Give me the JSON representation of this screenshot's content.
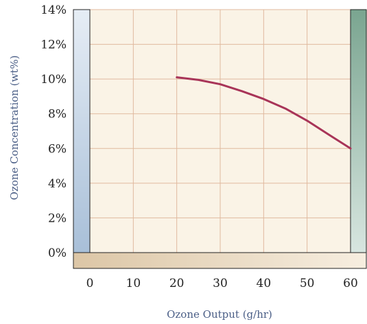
{
  "chart_data": {
    "type": "line",
    "title": "",
    "xlabel": "Ozone Output (g/hr)",
    "ylabel": "Ozone Concentration (wt%)",
    "xlim": [
      0,
      60
    ],
    "ylim": [
      0,
      14
    ],
    "xticks": [
      0,
      10,
      20,
      30,
      40,
      50,
      60
    ],
    "xtick_labels": [
      "0",
      "10",
      "20",
      "30",
      "40",
      "50",
      "60"
    ],
    "yticks": [
      0,
      2,
      4,
      6,
      8,
      10,
      12,
      14
    ],
    "ytick_labels": [
      "0%",
      "2%",
      "4%",
      "6%",
      "8%",
      "10%",
      "12%",
      "14%"
    ],
    "grid": true,
    "legend": "none",
    "series": [
      {
        "color": "#a83458",
        "x": [
          20,
          25,
          30,
          35,
          40,
          45,
          50,
          55,
          60
        ],
        "y": [
          10.1,
          9.95,
          9.7,
          9.3,
          8.85,
          8.3,
          7.6,
          6.8,
          6.0
        ]
      }
    ],
    "colors": {
      "plot_background": "#faf3e6",
      "grid": "#e0b99e",
      "left_band_top": "#e6edf5",
      "left_band_bottom": "#a8bfd8",
      "right_band_top": "#7aa590",
      "right_band_bottom": "#d8e6e0",
      "bottom_band_left": "#dcc6a6",
      "bottom_band_right": "#f7eee0"
    }
  }
}
